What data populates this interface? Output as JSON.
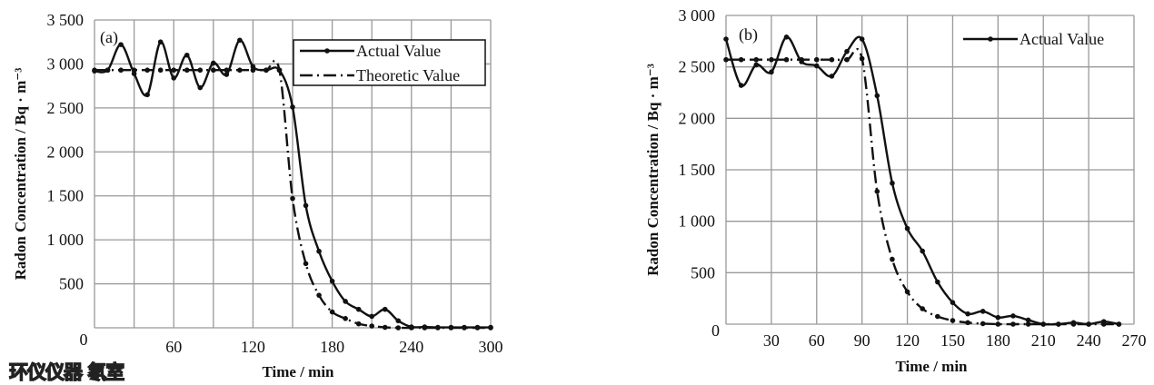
{
  "watermark": "环仪仪器 氡室",
  "chart_data": [
    {
      "type": "line",
      "panel_label": "(a)",
      "xlabel": "Time / min",
      "ylabel": "Radon Concentration / Bq · m⁻³",
      "xlim": [
        0,
        300
      ],
      "ylim": [
        0,
        3500
      ],
      "xticks": [
        "0",
        "60",
        "120",
        "180",
        "240",
        "300"
      ],
      "xtick_values": [
        0,
        60,
        120,
        180,
        240,
        300
      ],
      "yticks": [
        "500",
        "1 000",
        "1 500",
        "2 000",
        "2 500",
        "3 000",
        "3 500"
      ],
      "ytick_values": [
        500,
        1000,
        1500,
        2000,
        2500,
        3000,
        3500
      ],
      "grid": true,
      "legend": "top-right",
      "x": [
        0,
        10,
        20,
        30,
        40,
        50,
        60,
        70,
        80,
        90,
        100,
        110,
        120,
        130,
        140,
        150,
        160,
        170,
        180,
        190,
        200,
        210,
        220,
        230,
        240,
        250,
        260,
        270,
        280,
        290,
        300
      ],
      "series": [
        {
          "name": "Actual Value",
          "style": "solid",
          "values": [
            2920,
            2930,
            3220,
            2890,
            2650,
            3250,
            2840,
            3100,
            2730,
            3010,
            2880,
            3270,
            2970,
            2930,
            2930,
            2510,
            1390,
            870,
            530,
            300,
            210,
            130,
            210,
            80,
            10,
            10,
            5,
            5,
            5,
            5,
            5
          ]
        },
        {
          "name": "Theoretic Value",
          "style": "dash-dot",
          "values": [
            2930,
            2930,
            2930,
            2930,
            2930,
            2930,
            2930,
            2930,
            2930,
            2930,
            2930,
            2930,
            2930,
            2930,
            2930,
            1470,
            730,
            370,
            180,
            105,
            45,
            20,
            5,
            0,
            0,
            0,
            0,
            0,
            0,
            0,
            0
          ]
        }
      ]
    },
    {
      "type": "line",
      "panel_label": "(b)",
      "xlabel": "Time / min",
      "ylabel": "Radon Concentration / Bq · m⁻³",
      "xlim": [
        0,
        270
      ],
      "ylim": [
        0,
        3000
      ],
      "xticks": [
        "30",
        "60",
        "90",
        "120",
        "150",
        "180",
        "210",
        "240",
        "270"
      ],
      "xtick_values": [
        30,
        60,
        90,
        120,
        150,
        180,
        210,
        240,
        270
      ],
      "yticks": [
        "0",
        "500",
        "1 000",
        "1 500",
        "2 000",
        "2 500",
        "3 000"
      ],
      "ytick_values": [
        0,
        500,
        1000,
        1500,
        2000,
        2500,
        3000
      ],
      "grid": true,
      "legend": "top-right",
      "x": [
        0,
        10,
        20,
        30,
        40,
        50,
        60,
        70,
        80,
        90,
        100,
        110,
        120,
        130,
        140,
        150,
        160,
        170,
        180,
        190,
        200,
        210,
        220,
        230,
        240,
        250,
        260
      ],
      "series": [
        {
          "name": "Actual Value",
          "style": "solid",
          "values": [
            2770,
            2320,
            2520,
            2450,
            2790,
            2550,
            2510,
            2410,
            2650,
            2770,
            2220,
            1370,
            930,
            710,
            410,
            210,
            100,
            125,
            65,
            80,
            40,
            0,
            0,
            15,
            0,
            25,
            0
          ]
        },
        {
          "style": "dash-dot",
          "values": [
            2570,
            2570,
            2570,
            2570,
            2570,
            2570,
            2570,
            2570,
            2570,
            2580,
            1290,
            630,
            315,
            150,
            75,
            35,
            15,
            5,
            0,
            0,
            0,
            0,
            0,
            0,
            0,
            0,
            0
          ]
        }
      ]
    }
  ],
  "colors": {
    "line": "#111111",
    "grid": "#999999",
    "watermark": "#ffe600"
  }
}
